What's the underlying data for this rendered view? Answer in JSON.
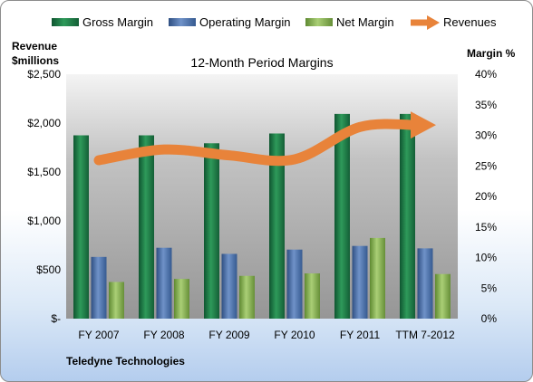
{
  "chart_data": {
    "type": "bar",
    "title": "12-Month Period Margins",
    "left_axis_label_line1": "Revenue",
    "left_axis_label_line2": "$millions",
    "right_axis_label": "Margin %",
    "categories": [
      "FY 2007",
      "FY 2008",
      "FY 2009",
      "FY 2010",
      "FY 2011",
      "TTM 7-2012"
    ],
    "series": [
      {
        "name": "Gross Margin",
        "type": "bar",
        "axis": "right",
        "values": [
          30.0,
          30.0,
          28.7,
          30.3,
          33.5,
          33.5
        ],
        "color": "#1f7a45"
      },
      {
        "name": "Operating Margin",
        "type": "bar",
        "axis": "right",
        "values": [
          10.1,
          11.6,
          10.6,
          11.3,
          11.9,
          11.5
        ],
        "color": "#4a6ea9"
      },
      {
        "name": "Net Margin",
        "type": "bar",
        "axis": "right",
        "values": [
          6.0,
          6.5,
          7.0,
          7.4,
          13.2,
          7.3
        ],
        "color": "#8db456"
      },
      {
        "name": "Revenues",
        "type": "line",
        "axis": "left",
        "values": [
          1620,
          1730,
          1670,
          1630,
          1960,
          1980
        ],
        "color": "#e8833a"
      }
    ],
    "y_left": {
      "ylim": [
        0,
        2500
      ],
      "ticks": [
        0,
        500,
        1000,
        1500,
        2000,
        2500
      ],
      "tick_labels": [
        "$-",
        "$500",
        "$1,000",
        "$1,500",
        "$2,000",
        "$2,500"
      ]
    },
    "y_right": {
      "ylim": [
        0,
        40
      ],
      "ticks": [
        0,
        5,
        10,
        15,
        20,
        25,
        30,
        35,
        40
      ],
      "tick_labels": [
        "0%",
        "5%",
        "10%",
        "15%",
        "20%",
        "25%",
        "30%",
        "35%",
        "40%"
      ]
    },
    "legend_position": "top",
    "grid": false
  },
  "footer": {
    "company": "Teledyne Technologies"
  }
}
